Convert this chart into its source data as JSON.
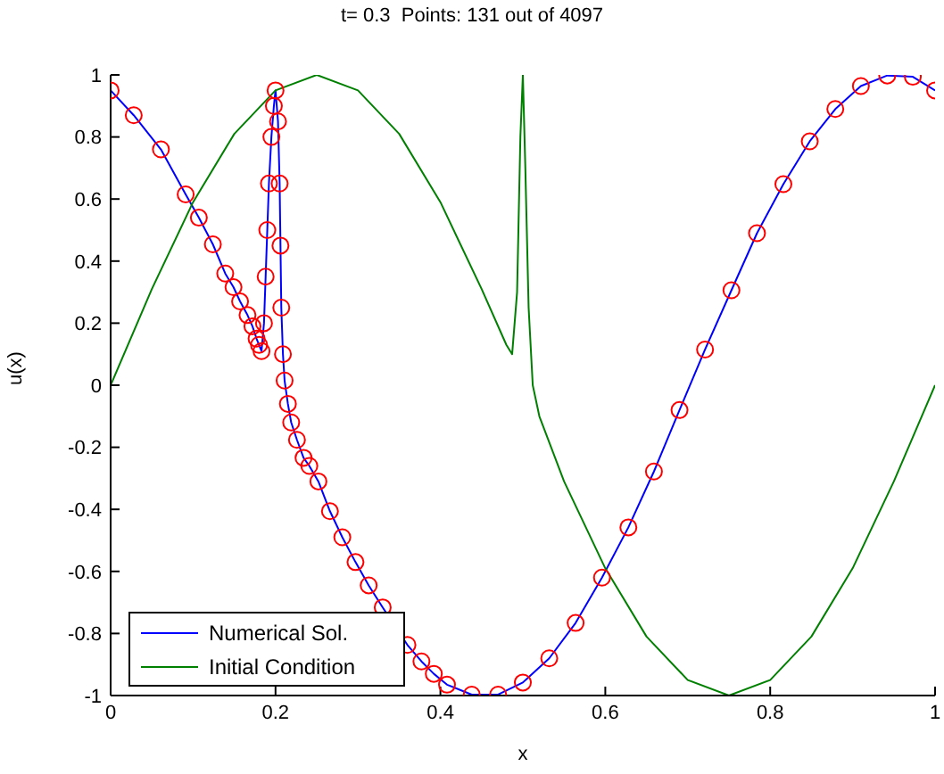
{
  "chart_data": {
    "type": "line",
    "title": "t= 0.3  Points: 131 out of 4097",
    "xlabel": "x",
    "ylabel": "u(x)",
    "xlim": [
      0,
      1
    ],
    "xticks": [
      0,
      0.2,
      0.4,
      0.6,
      0.8,
      1
    ],
    "ylim": [
      -1,
      1
    ],
    "yticks": [
      -1,
      -0.8,
      -0.6,
      -0.4,
      -0.2,
      0,
      0.2,
      0.4,
      0.6,
      0.8,
      1
    ],
    "grid": false,
    "legend": "bottom left",
    "marker": "none",
    "line_style": "solid",
    "series": [
      {
        "name": "Numerical Sol.",
        "color": "#0000ff",
        "x": [
          0,
          0.028,
          0.061,
          0.091,
          0.107,
          0.124,
          0.139,
          0.149,
          0.157,
          0.166,
          0.172,
          0.177,
          0.18,
          0.183,
          0.186,
          0.188,
          0.19,
          0.192,
          0.195,
          0.198,
          0.2,
          0.203,
          0.205,
          0.206,
          0.207,
          0.209,
          0.211,
          0.215,
          0.219,
          0.226,
          0.234,
          0.241,
          0.252,
          0.266,
          0.281,
          0.297,
          0.313,
          0.33,
          0.36,
          0.377,
          0.392,
          0.408,
          0.438,
          0.47,
          0.5,
          0.532,
          0.564,
          0.596,
          0.628,
          0.659,
          0.69,
          0.721,
          0.753,
          0.784,
          0.816,
          0.848,
          0.879,
          0.91,
          0.942,
          0.973,
          1
        ],
        "values": [
          0.95,
          0.87,
          0.76,
          0.615,
          0.54,
          0.454,
          0.36,
          0.316,
          0.27,
          0.226,
          0.19,
          0.15,
          0.13,
          0.11,
          0.2,
          0.35,
          0.5,
          0.65,
          0.8,
          0.9,
          0.95,
          0.85,
          0.65,
          0.45,
          0.25,
          0.1,
          0.015,
          -0.06,
          -0.12,
          -0.176,
          -0.234,
          -0.26,
          -0.31,
          -0.406,
          -0.49,
          -0.57,
          -0.645,
          -0.716,
          -0.837,
          -0.89,
          -0.93,
          -0.965,
          -0.997,
          -0.997,
          -0.958,
          -0.88,
          -0.766,
          -0.62,
          -0.458,
          -0.278,
          -0.08,
          0.115,
          0.306,
          0.49,
          0.648,
          0.786,
          0.89,
          0.964,
          0.998,
          0.994,
          0.95
        ]
      },
      {
        "type": "scatter",
        "marker": "circle",
        "color": "#ff0000",
        "x": [
          0,
          0.028,
          0.061,
          0.091,
          0.107,
          0.124,
          0.139,
          0.149,
          0.157,
          0.166,
          0.172,
          0.177,
          0.18,
          0.183,
          0.186,
          0.188,
          0.19,
          0.192,
          0.195,
          0.198,
          0.2,
          0.203,
          0.205,
          0.206,
          0.207,
          0.209,
          0.211,
          0.215,
          0.219,
          0.226,
          0.234,
          0.241,
          0.252,
          0.266,
          0.281,
          0.297,
          0.313,
          0.33,
          0.36,
          0.377,
          0.392,
          0.408,
          0.438,
          0.47,
          0.5,
          0.532,
          0.564,
          0.596,
          0.628,
          0.659,
          0.69,
          0.721,
          0.753,
          0.784,
          0.816,
          0.848,
          0.879,
          0.91,
          0.942,
          0.973,
          1
        ],
        "values": [
          0.95,
          0.87,
          0.76,
          0.615,
          0.54,
          0.454,
          0.36,
          0.316,
          0.27,
          0.226,
          0.19,
          0.15,
          0.13,
          0.11,
          0.2,
          0.35,
          0.5,
          0.65,
          0.8,
          0.9,
          0.95,
          0.85,
          0.65,
          0.45,
          0.25,
          0.1,
          0.015,
          -0.06,
          -0.12,
          -0.176,
          -0.234,
          -0.26,
          -0.31,
          -0.406,
          -0.49,
          -0.57,
          -0.645,
          -0.716,
          -0.837,
          -0.89,
          -0.93,
          -0.965,
          -0.997,
          -0.997,
          -0.958,
          -0.88,
          -0.766,
          -0.62,
          -0.458,
          -0.278,
          -0.08,
          0.115,
          0.306,
          0.49,
          0.648,
          0.786,
          0.89,
          0.964,
          0.998,
          0.994,
          0.95
        ]
      },
      {
        "name": "Initial Condition",
        "color": "#008000",
        "x": [
          0,
          0.05,
          0.1,
          0.15,
          0.2,
          0.25,
          0.3,
          0.35,
          0.4,
          0.45,
          0.48,
          0.487,
          0.493,
          0.497,
          0.5,
          0.503,
          0.507,
          0.512,
          0.52,
          0.55,
          0.6,
          0.65,
          0.7,
          0.75,
          0.8,
          0.85,
          0.9,
          0.95,
          1
        ],
        "values": [
          0,
          0.31,
          0.59,
          0.81,
          0.95,
          1,
          0.95,
          0.81,
          0.59,
          0.31,
          0.13,
          0.1,
          0.3,
          0.8,
          1,
          0.7,
          0.25,
          0,
          -0.1,
          -0.31,
          -0.59,
          -0.81,
          -0.95,
          -1,
          -0.95,
          -0.81,
          -0.59,
          -0.31,
          0
        ]
      }
    ]
  }
}
